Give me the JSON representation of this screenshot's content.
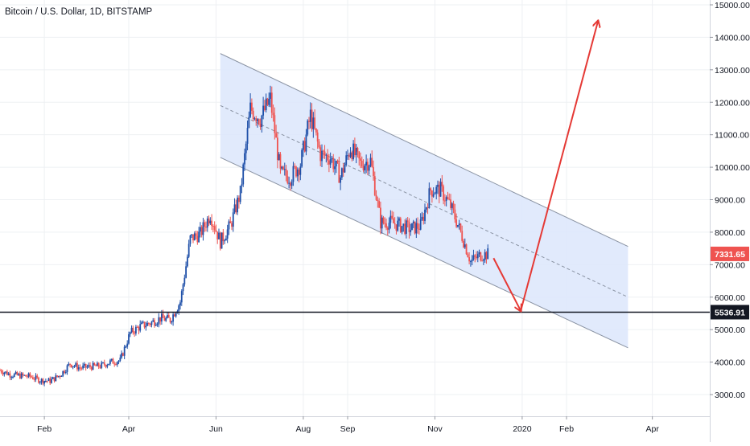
{
  "header": {
    "title": "Bitcoin / U.S. Dollar, 1D, BITSTAMP"
  },
  "chart_data": {
    "type": "candlestick",
    "title": "Bitcoin / U.S. Dollar, 1D, BITSTAMP",
    "y_axis": {
      "position": "right",
      "ticks": [
        "15000.00",
        "14000.00",
        "13000.00",
        "12000.00",
        "11000.00",
        "10000.00",
        "9000.00",
        "8000.00",
        "7000.00",
        "6000.00",
        "5000.00",
        "4000.00",
        "3000.00"
      ],
      "tick_values": [
        15000,
        14000,
        13000,
        12000,
        11000,
        10000,
        9000,
        8000,
        7000,
        6000,
        5000,
        4000,
        3000
      ],
      "range": [
        2500,
        15300
      ]
    },
    "x_axis": {
      "ticks": [
        "Feb",
        "Apr",
        "Jun",
        "Aug",
        "Sep",
        "Nov",
        "2020",
        "Feb",
        "Apr"
      ],
      "tick_dates": [
        "2019-02-01",
        "2019-04-01",
        "2019-06-01",
        "2019-08-01",
        "2019-09-01",
        "2019-11-01",
        "2020-01-01",
        "2020-02-01",
        "2020-04-01"
      ],
      "range": [
        "2019-01-01",
        "2020-04-15"
      ]
    },
    "grid": true,
    "price_labels": [
      {
        "name": "last-price",
        "text": "7331.65",
        "value": 7331.65,
        "color": "#ef5350"
      },
      {
        "name": "horizontal-level",
        "text": "5536.91",
        "value": 5536.91,
        "color": "#131722"
      }
    ],
    "colors": {
      "up": "#1e4fa8",
      "down": "#ef5350",
      "channel_fill": "#dce6fb",
      "channel_line": "#8a93a3",
      "arrow": "#e53935",
      "level": "#131722"
    },
    "candles_close": [
      [
        "2019-01-01",
        3750
      ],
      [
        "2019-01-08",
        3620
      ],
      [
        "2019-01-15",
        3580
      ],
      [
        "2019-01-22",
        3560
      ],
      [
        "2019-01-29",
        3440
      ],
      [
        "2019-02-05",
        3420
      ],
      [
        "2019-02-12",
        3600
      ],
      [
        "2019-02-19",
        3950
      ],
      [
        "2019-02-26",
        3820
      ],
      [
        "2019-03-05",
        3860
      ],
      [
        "2019-03-12",
        3880
      ],
      [
        "2019-03-19",
        4000
      ],
      [
        "2019-03-26",
        4050
      ],
      [
        "2019-04-02",
        4900
      ],
      [
        "2019-04-09",
        5100
      ],
      [
        "2019-04-16",
        5200
      ],
      [
        "2019-04-23",
        5350
      ],
      [
        "2019-04-30",
        5300
      ],
      [
        "2019-05-07",
        5850
      ],
      [
        "2019-05-14",
        7800
      ],
      [
        "2019-05-21",
        7950
      ],
      [
        "2019-05-28",
        8550
      ],
      [
        "2019-06-04",
        7700
      ],
      [
        "2019-06-11",
        8200
      ],
      [
        "2019-06-18",
        9200
      ],
      [
        "2019-06-25",
        11800
      ],
      [
        "2019-07-02",
        11500
      ],
      [
        "2019-07-09",
        12100
      ],
      [
        "2019-07-16",
        9800
      ],
      [
        "2019-07-23",
        9700
      ],
      [
        "2019-07-30",
        10100
      ],
      [
        "2019-08-06",
        11600
      ],
      [
        "2019-08-13",
        10400
      ],
      [
        "2019-08-20",
        10300
      ],
      [
        "2019-08-27",
        9700
      ],
      [
        "2019-09-03",
        10600
      ],
      [
        "2019-09-10",
        10100
      ],
      [
        "2019-09-17",
        10200
      ],
      [
        "2019-09-24",
        8300
      ],
      [
        "2019-10-01",
        8300
      ],
      [
        "2019-10-08",
        8200
      ],
      [
        "2019-10-15",
        8100
      ],
      [
        "2019-10-22",
        8200
      ],
      [
        "2019-10-29",
        9300
      ],
      [
        "2019-11-05",
        9300
      ],
      [
        "2019-11-12",
        8800
      ],
      [
        "2019-11-19",
        8000
      ],
      [
        "2019-11-26",
        7100
      ],
      [
        "2019-12-03",
        7300
      ],
      [
        "2019-12-09",
        7331.65
      ]
    ],
    "annotations": [
      {
        "type": "parallel_channel",
        "upper": [
          [
            "2019-06-04",
            13500
          ],
          [
            "2020-03-15",
            7560
          ]
        ],
        "median": [
          [
            "2019-06-04",
            11900
          ],
          [
            "2020-03-15",
            6000
          ]
        ],
        "lower": [
          [
            "2019-06-04",
            10300
          ],
          [
            "2020-03-15",
            4440
          ]
        ]
      },
      {
        "type": "horizontal_line",
        "value": 5536.91
      },
      {
        "type": "arrow",
        "points": [
          [
            "2019-12-12",
            7200
          ],
          [
            "2019-12-31",
            5580
          ]
        ]
      },
      {
        "type": "arrow",
        "points": [
          [
            "2019-12-31",
            5580
          ],
          [
            "2020-02-23",
            14500
          ]
        ]
      }
    ]
  }
}
